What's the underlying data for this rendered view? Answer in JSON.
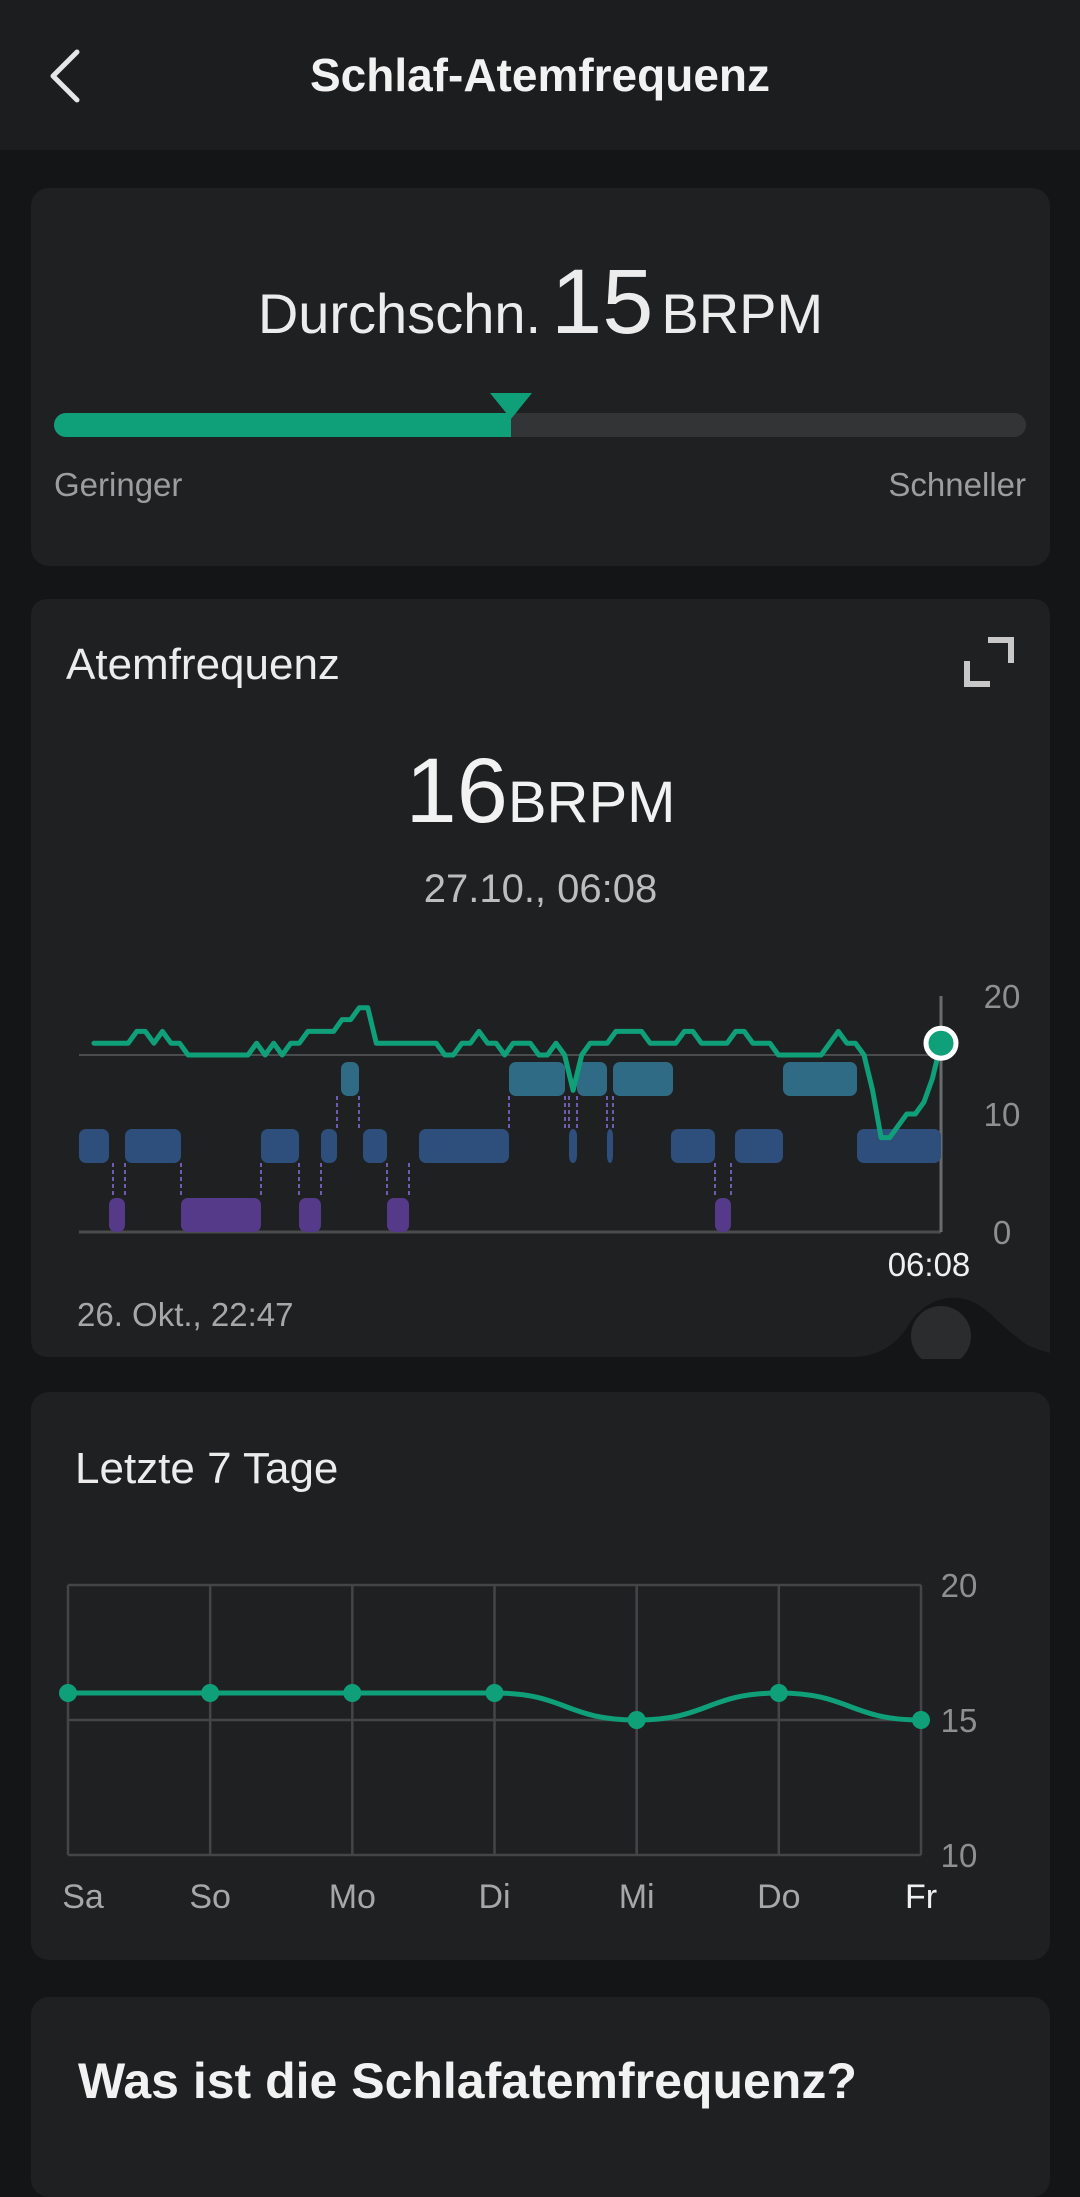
{
  "header": {
    "title": "Schlaf-Atemfrequenz",
    "back_icon": "chevron-left-icon"
  },
  "summary": {
    "label": "Durchschn.",
    "value": "15",
    "unit": "BRPM",
    "position_fraction": 0.47,
    "low_label": "Geringer",
    "high_label": "Schneller",
    "accent_color": "#0fa07a"
  },
  "detail": {
    "title": "Atemfrequenz",
    "expand_icon": "expand-icon",
    "selected_value": "16",
    "selected_unit": "BRPM",
    "selected_time": "27.10., 06:08",
    "start_label": "26. Okt., 22:47",
    "chart_data": {
      "type": "line",
      "y_ticks": [
        "20",
        "10",
        "0"
      ],
      "ylim": [
        0,
        20
      ],
      "cursor_label": "06:08",
      "series": [
        {
          "values": [
            16,
            16,
            16,
            16,
            16,
            17,
            17,
            16,
            17,
            16,
            16,
            15,
            15,
            15,
            15,
            15,
            15,
            15,
            15,
            16,
            15,
            16,
            15,
            16,
            16,
            17,
            17,
            17,
            17,
            18,
            18,
            19,
            19,
            16,
            16,
            16,
            16,
            16,
            16,
            16,
            16,
            15,
            15,
            16,
            16,
            17,
            16,
            16,
            15,
            16,
            16,
            16,
            15,
            15,
            16,
            15,
            12,
            15,
            16,
            16,
            16,
            17,
            17,
            17,
            17,
            16,
            16,
            16,
            16,
            17,
            17,
            16,
            16,
            16,
            16,
            17,
            17,
            16,
            16,
            16,
            15,
            15,
            15,
            15,
            15,
            15,
            16,
            17,
            16,
            16,
            15,
            12,
            8,
            8,
            9,
            10,
            10,
            11,
            13,
            16
          ]
        }
      ],
      "stage_colors": {
        "light": "#2e4e7c",
        "rem": "#2f6b85",
        "deep": "#563a8a"
      }
    }
  },
  "week": {
    "title": "Letzte 7 Tage",
    "chart_data": {
      "type": "line",
      "categories": [
        "Sa",
        "So",
        "Mo",
        "Di",
        "Mi",
        "Do",
        "Fr"
      ],
      "values": [
        16,
        16,
        16,
        16,
        15,
        16,
        15
      ],
      "ylim": [
        10,
        20
      ],
      "y_ticks": [
        "20",
        "15",
        "10"
      ],
      "color": "#0fa07a"
    }
  },
  "info": {
    "title": "Was ist die Schlafatemfrequenz?"
  }
}
